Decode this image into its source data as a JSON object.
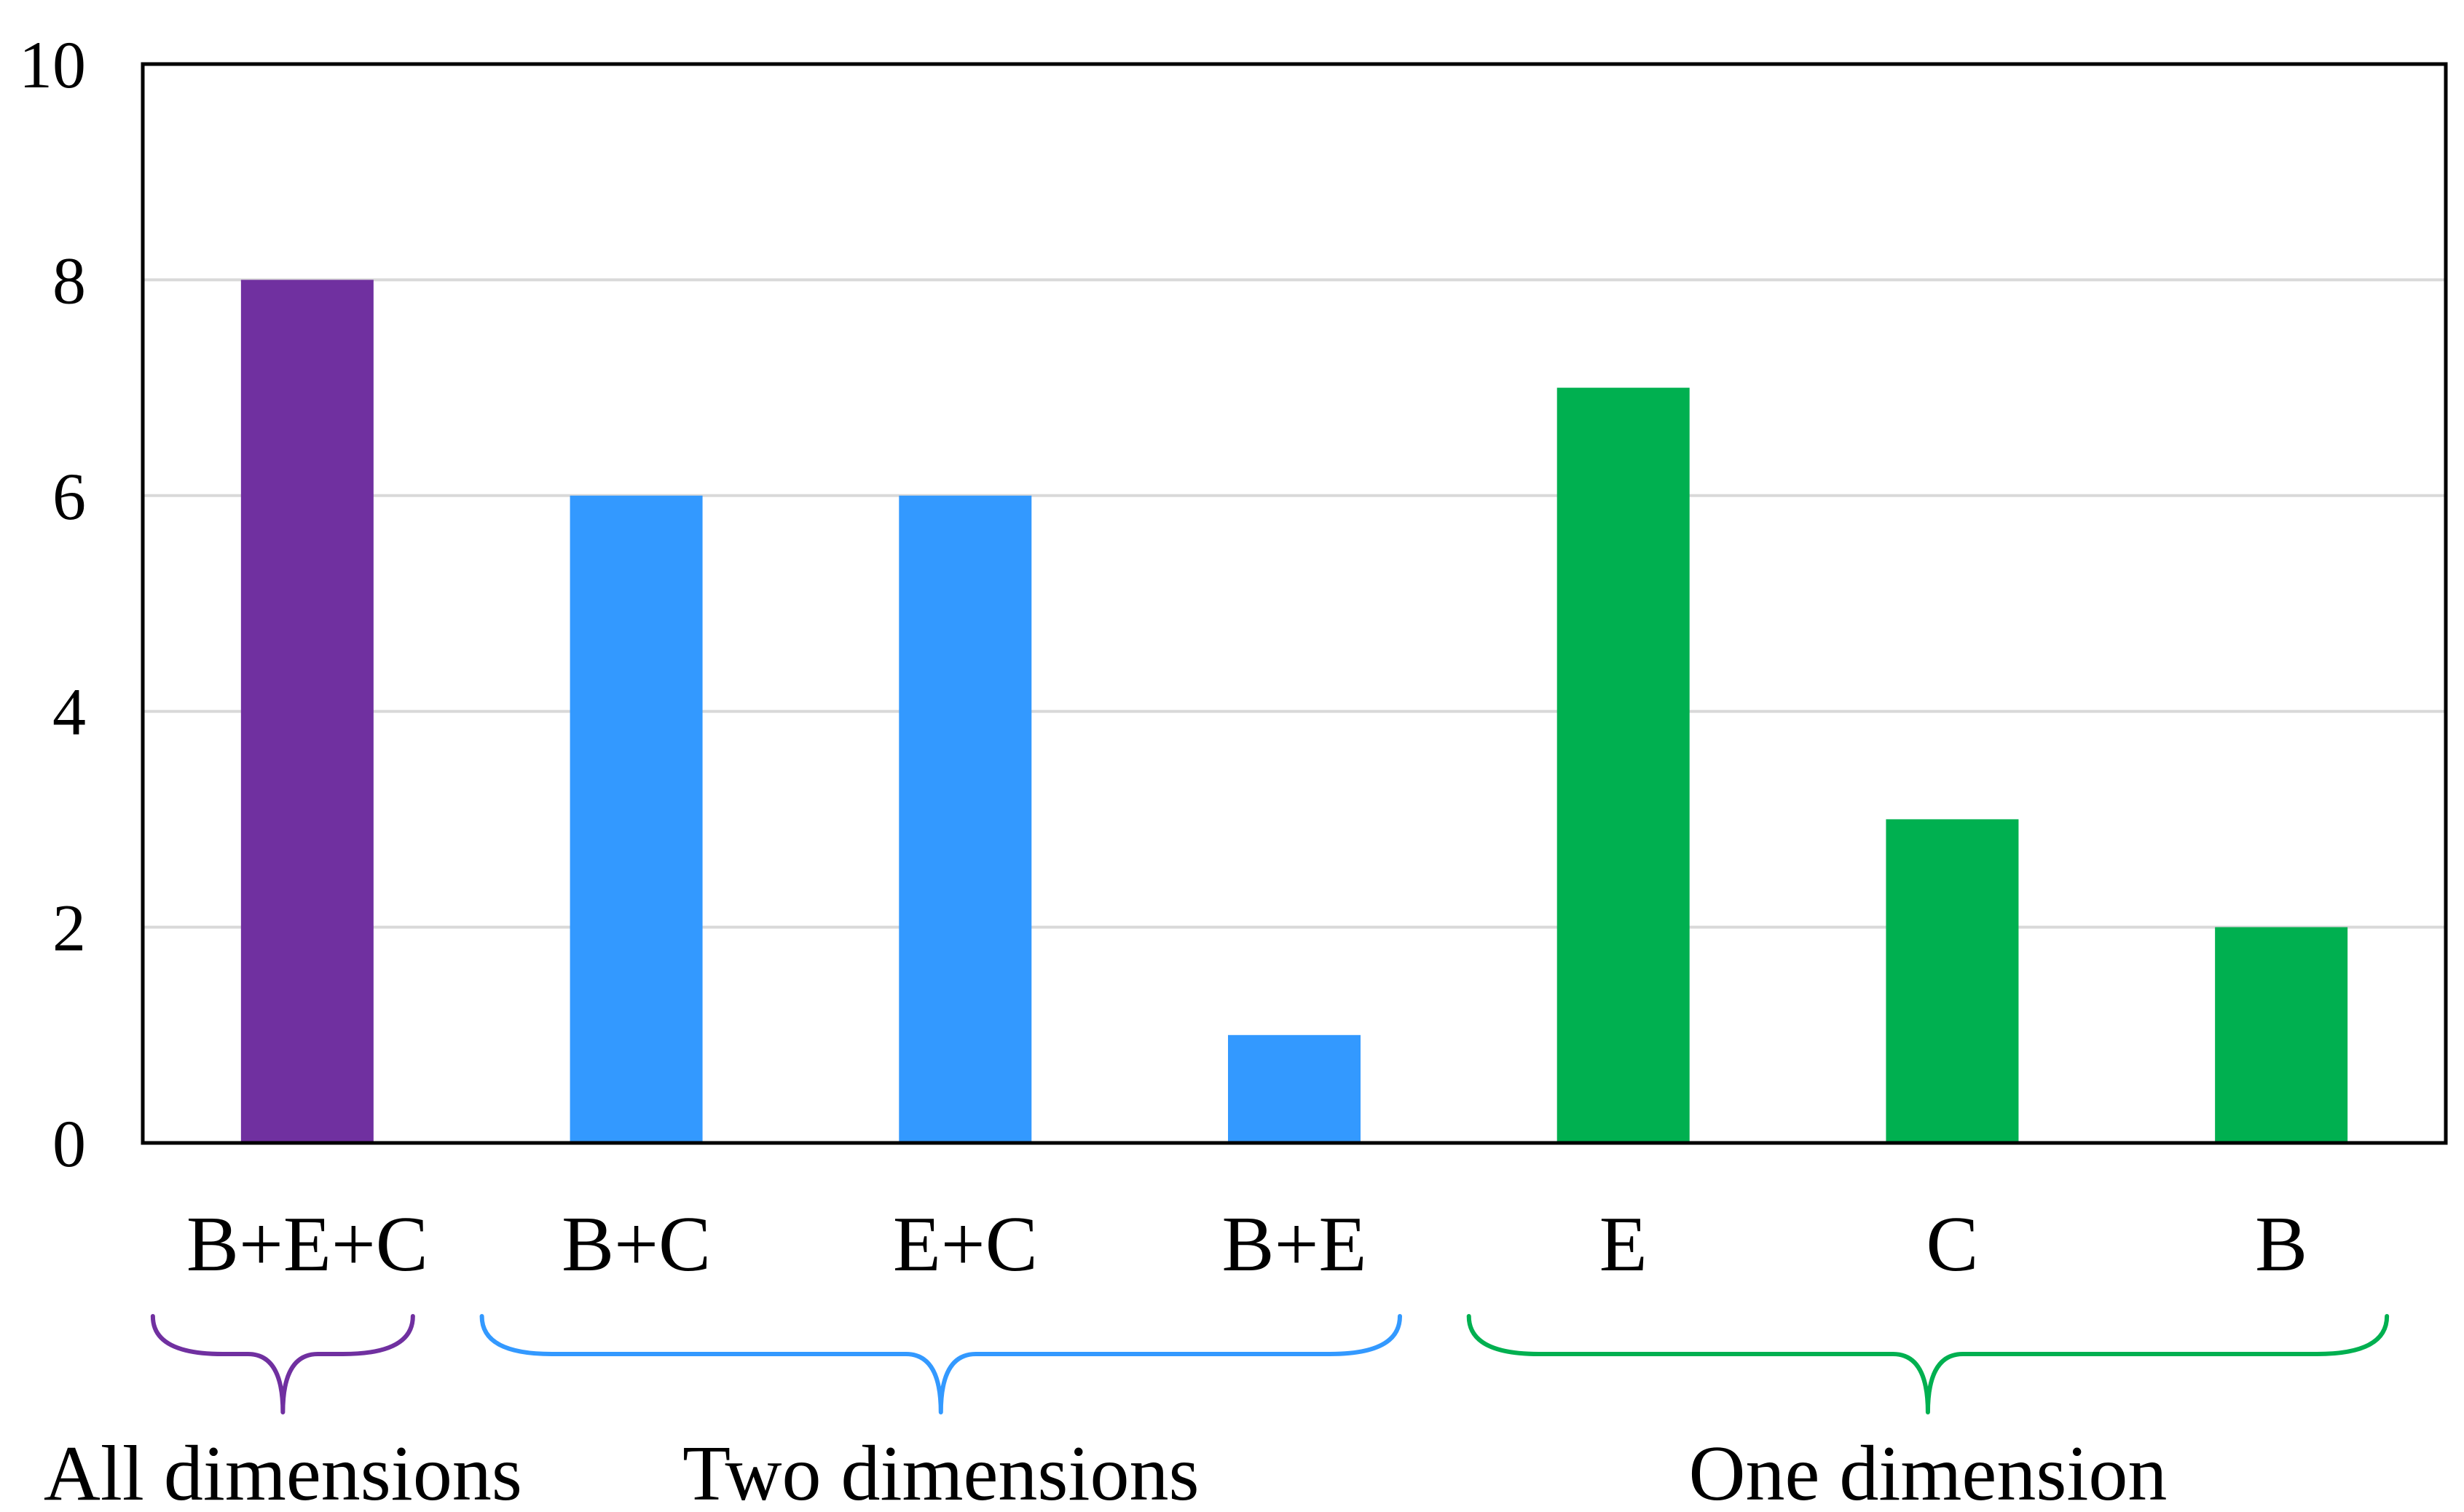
{
  "chart_data": {
    "type": "bar",
    "title": "",
    "xlabel": "",
    "ylabel": "",
    "ylim": [
      0,
      10
    ],
    "yticks": [
      0,
      2,
      4,
      6,
      8,
      10
    ],
    "grid": true,
    "categories": [
      "B+E+C",
      "B+C",
      "E+C",
      "B+E",
      "E",
      "C",
      "B"
    ],
    "values": [
      8,
      6,
      6,
      1,
      7,
      3,
      2
    ],
    "bar_colors": [
      "#7030a0",
      "#3399ff",
      "#3399ff",
      "#3399ff",
      "#00b050",
      "#00b050",
      "#00b050"
    ],
    "groups": [
      {
        "label": "All dimensions",
        "categories": [
          "B+E+C"
        ],
        "color": "#7030a0"
      },
      {
        "label": "Two dimensions",
        "categories": [
          "B+C",
          "E+C",
          "B+E"
        ],
        "color": "#3399ff"
      },
      {
        "label": "One dimension",
        "categories": [
          "E",
          "C",
          "B"
        ],
        "color": "#00b050"
      }
    ]
  }
}
